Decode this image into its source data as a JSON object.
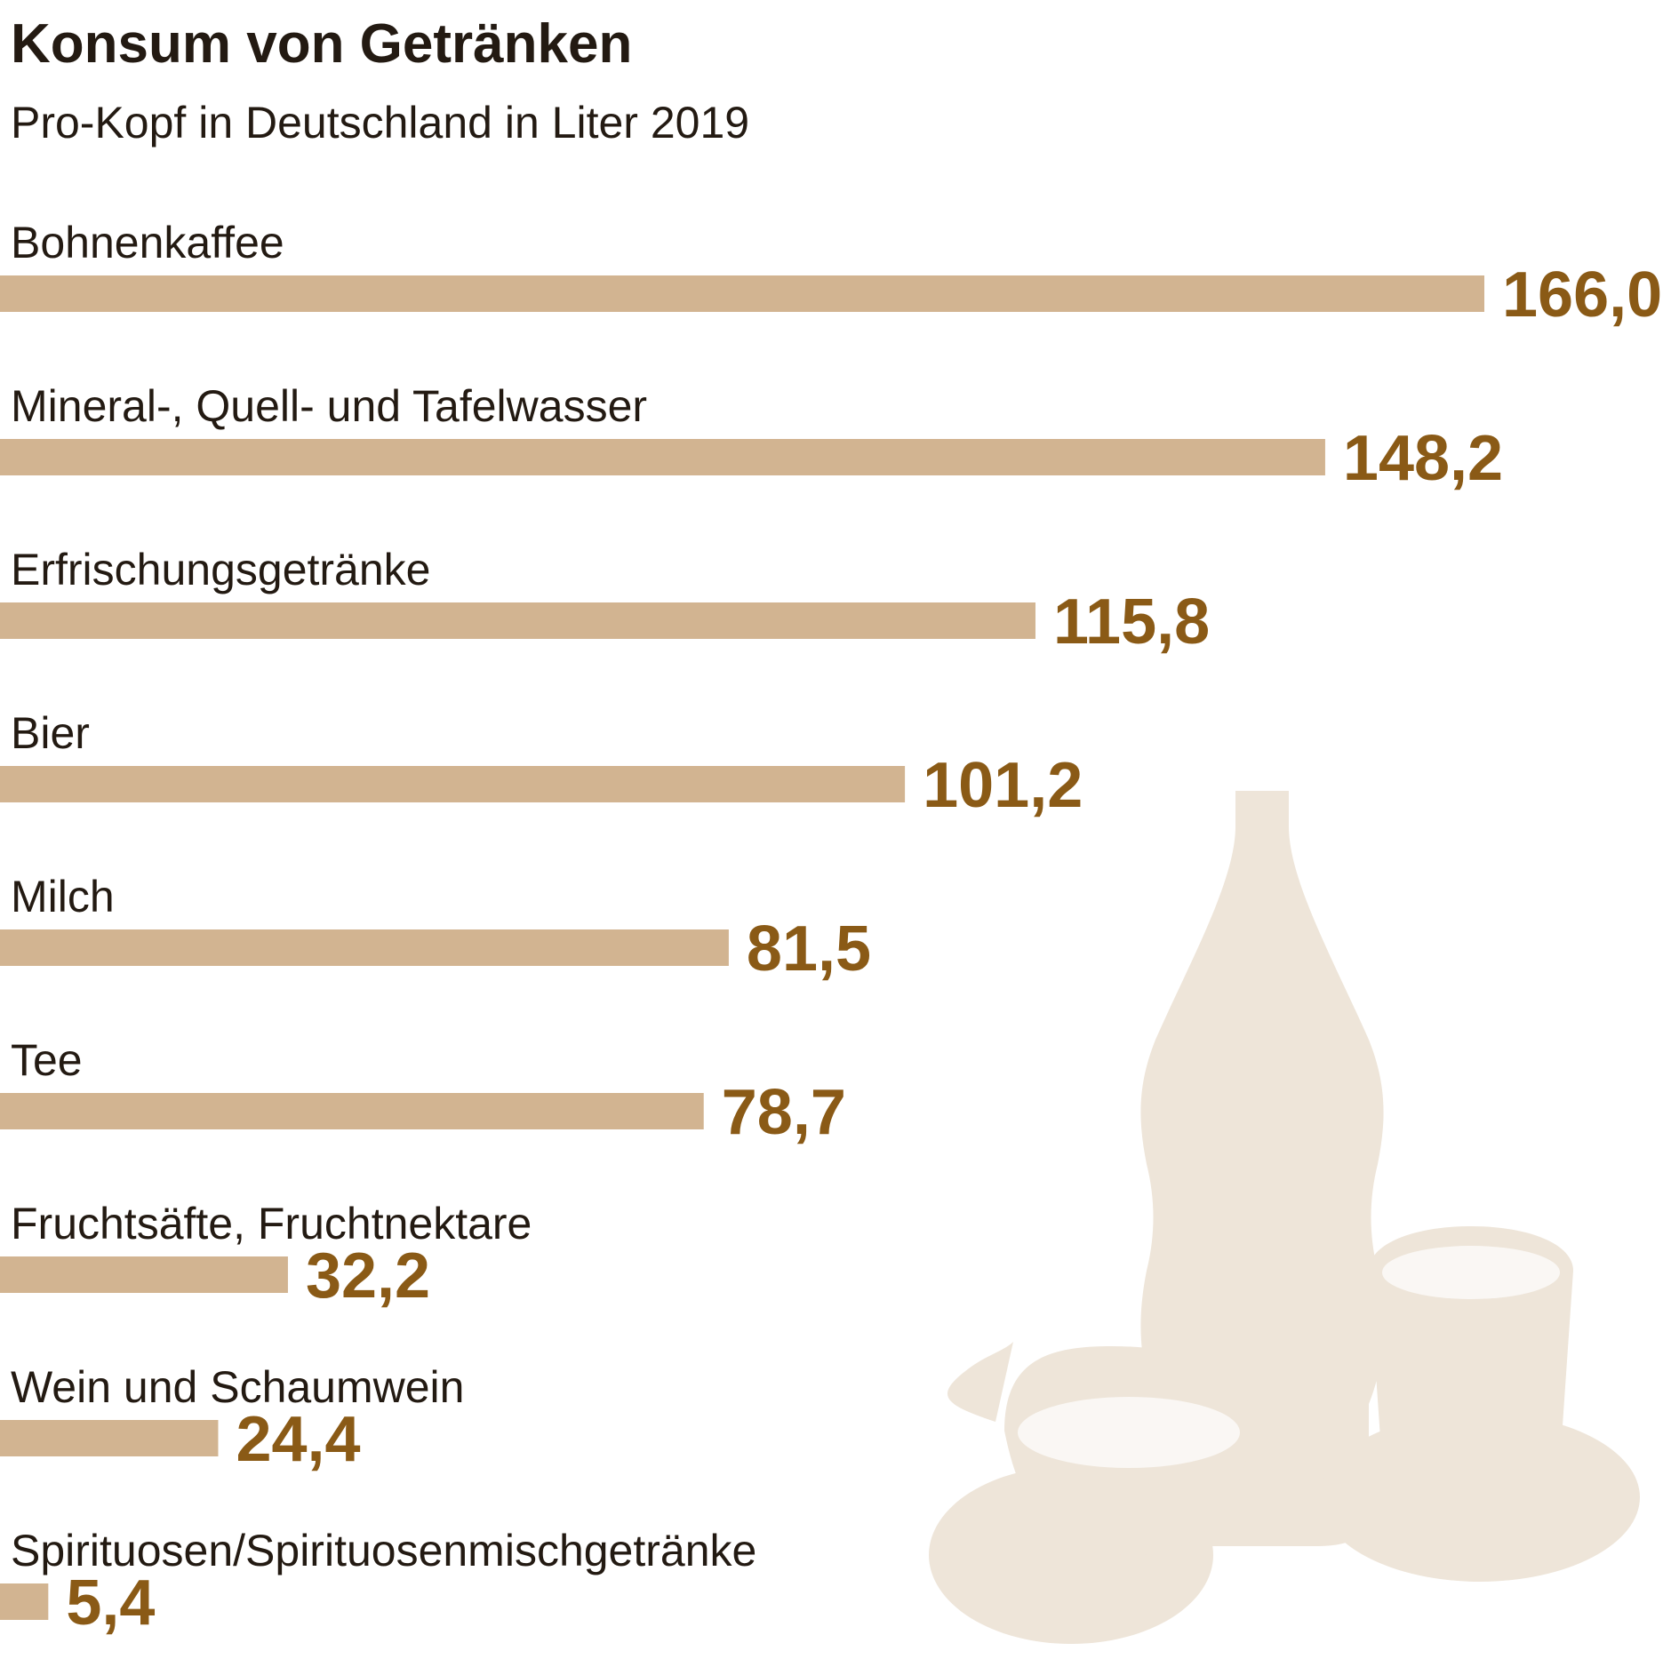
{
  "chart_data": {
    "type": "bar",
    "orientation": "horizontal",
    "title": "Konsum von Getränken",
    "subtitle": "Pro-Kopf in Deutschland in Liter 2019",
    "categories": [
      "Bohnenkaffee",
      "Mineral-, Quell- und Tafelwasser",
      "Erfrischungsgetränke",
      "Bier",
      "Milch",
      "Tee",
      "Fruchtsäfte, Fruchtnektare",
      "Wein und Schaumwein",
      "Spirituosen/Spirituosenmischgetränke"
    ],
    "values": [
      166.0,
      148.2,
      115.8,
      101.2,
      81.5,
      78.7,
      32.2,
      24.4,
      5.4
    ],
    "value_labels": [
      "166,0",
      "148,2",
      "115,8",
      "101,2",
      "81,5",
      "78,7",
      "32,2",
      "24,4",
      "5,4"
    ],
    "color": "#d2b491",
    "label_color": "#8a5a16"
  }
}
